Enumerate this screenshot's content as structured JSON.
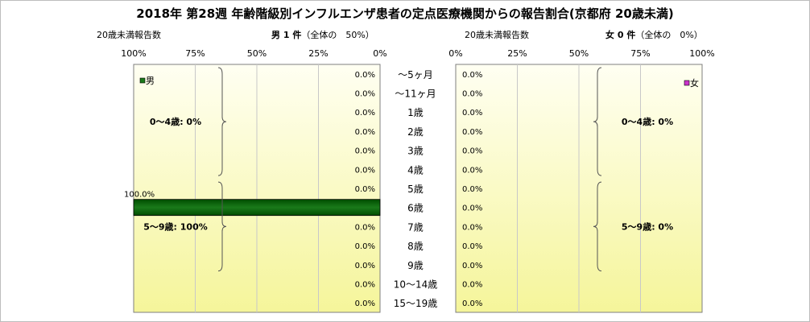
{
  "title": "2018年 第28週 年齢階級別インフルエンザ患者の定点医療機関からの報告割合(京都府 20歳未満)",
  "male_header": {
    "count_label": "20歳未満報告数",
    "summary_bold": "男 1 件",
    "summary_rest": "（全体の　50%）"
  },
  "female_header": {
    "count_label": "20歳未満報告数",
    "summary_bold": "女 0 件",
    "summary_rest": "（全体の　0%）"
  },
  "colors": {
    "male": "#1a7a1a",
    "male_dark": "#004d00",
    "female": "#cc33cc",
    "plot_bg_light": "#fffff2",
    "plot_bg_dark": "#f5f59a"
  },
  "chart_data": [
    {
      "type": "bar",
      "orientation": "horizontal",
      "direction": "right-to-left",
      "series": [
        {
          "name": "男",
          "values": [
            0,
            0,
            0,
            0,
            0,
            0,
            0,
            100,
            0,
            0,
            0,
            0,
            0
          ]
        }
      ],
      "categories": [
        "〜5ヶ月",
        "〜11ヶ月",
        "1歳",
        "2歳",
        "3歳",
        "4歳",
        "5歳",
        "6歳",
        "7歳",
        "8歳",
        "9歳",
        "10〜14歳",
        "15〜19歳"
      ],
      "data_labels": [
        "0.0%",
        "0.0%",
        "0.0%",
        "0.0%",
        "0.0%",
        "0.0%",
        "0.0%",
        "100.0%",
        "0.0%",
        "0.0%",
        "0.0%",
        "0.0%",
        "0.0%"
      ],
      "xlim": [
        0,
        100
      ],
      "x_ticks": [
        "100%",
        "75%",
        "50%",
        "25%",
        "0%"
      ],
      "groups": [
        {
          "label": "0〜4歳: 0%",
          "from": 0,
          "to": 5
        },
        {
          "label": "5〜9歳: 100%",
          "from": 6,
          "to": 10
        }
      ],
      "grid": true,
      "legend": "top-left"
    },
    {
      "type": "bar",
      "orientation": "horizontal",
      "direction": "left-to-right",
      "series": [
        {
          "name": "女",
          "values": [
            0,
            0,
            0,
            0,
            0,
            0,
            0,
            0,
            0,
            0,
            0,
            0,
            0
          ]
        }
      ],
      "categories": [
        "〜5ヶ月",
        "〜11ヶ月",
        "1歳",
        "2歳",
        "3歳",
        "4歳",
        "5歳",
        "6歳",
        "7歳",
        "8歳",
        "9歳",
        "10〜14歳",
        "15〜19歳"
      ],
      "data_labels": [
        "0.0%",
        "0.0%",
        "0.0%",
        "0.0%",
        "0.0%",
        "0.0%",
        "0.0%",
        "0.0%",
        "0.0%",
        "0.0%",
        "0.0%",
        "0.0%",
        "0.0%"
      ],
      "xlim": [
        0,
        100
      ],
      "x_ticks": [
        "0%",
        "25%",
        "50%",
        "75%",
        "100%"
      ],
      "groups": [
        {
          "label": "0〜4歳: 0%",
          "from": 0,
          "to": 5
        },
        {
          "label": "5〜9歳: 0%",
          "from": 6,
          "to": 10
        }
      ],
      "grid": true,
      "legend": "top-right"
    }
  ]
}
